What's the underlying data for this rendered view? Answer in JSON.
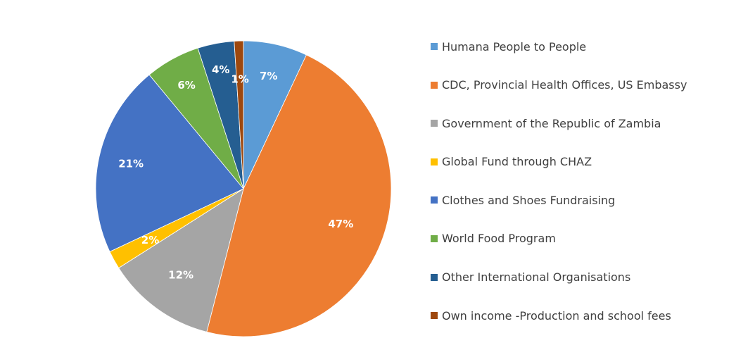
{
  "chart_data": {
    "type": "pie",
    "start_angle_deg": 0,
    "direction": "clockwise",
    "legend_position": "right",
    "slices": [
      {
        "name": "Humana People to People",
        "value": 7,
        "label": "7%",
        "color": "#5b9bd5"
      },
      {
        "name": "CDC, Provincial Health Offices, US Embassy",
        "value": 47,
        "label": "47%",
        "color": "#ed7d31"
      },
      {
        "name": "Government of the Republic of Zambia",
        "value": 12,
        "label": "12%",
        "color": "#a5a5a5"
      },
      {
        "name": "Global Fund through CHAZ",
        "value": 2,
        "label": "2%",
        "color": "#ffc000"
      },
      {
        "name": "Clothes and Shoes Fundraising",
        "value": 21,
        "label": "21%",
        "color": "#4472c4"
      },
      {
        "name": "World Food Program",
        "value": 6,
        "label": "6%",
        "color": "#70ad47"
      },
      {
        "name": "Other International Organisations",
        "value": 4,
        "label": "4%",
        "color": "#255e91"
      },
      {
        "name": "Own income -Production and school fees",
        "value": 1,
        "label": "1%",
        "color": "#9e480e"
      }
    ]
  }
}
